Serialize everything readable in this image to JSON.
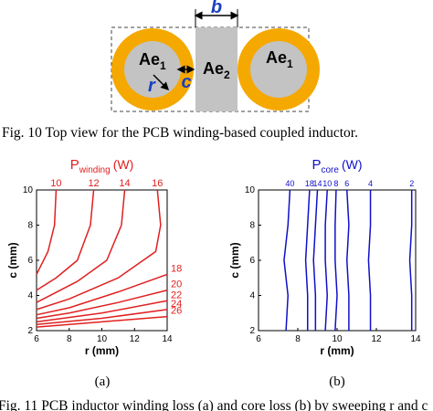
{
  "diagram": {
    "b": "b",
    "left_core": {
      "text": "Ae",
      "sub": "1"
    },
    "middle_core": {
      "text": "Ae",
      "sub": "2"
    },
    "right_core": {
      "text": "Ae",
      "sub": "1"
    },
    "r": "r",
    "c": "c"
  },
  "fig10_caption": "Fig. 10 Top view for the PCB winding-based coupled inductor.",
  "chart_data": [
    {
      "type": "contour",
      "title": "P",
      "title_sub": "winding",
      "title_unit": "(W)",
      "xlabel": "r (mm)",
      "ylabel": "c (mm)",
      "color": "#e02020",
      "xlim": [
        6,
        14
      ],
      "ylim": [
        2,
        10
      ],
      "xticks": [
        6,
        8,
        10,
        12,
        14
      ],
      "yticks": [
        2,
        4,
        6,
        8,
        10
      ],
      "series": [
        {
          "name": "10",
          "x": [
            7.2,
            7.1,
            6.7,
            6
          ],
          "y": [
            10,
            8,
            6.5,
            5.2
          ]
        },
        {
          "name": "12",
          "x": [
            9.5,
            9.3,
            8.5,
            7.2,
            6
          ],
          "y": [
            10,
            8,
            6,
            5,
            4.3
          ]
        },
        {
          "name": "14",
          "x": [
            11.4,
            11.2,
            10.3,
            8.5,
            6
          ],
          "y": [
            10,
            8,
            6,
            4.8,
            3.6
          ]
        },
        {
          "name": "16",
          "x": [
            13.4,
            13.6,
            13.3,
            11,
            8,
            6
          ],
          "y": [
            10,
            8,
            6.5,
            5,
            3.8,
            3.2
          ]
        },
        {
          "name": "18",
          "x": [
            14,
            11,
            8,
            6
          ],
          "y": [
            5.2,
            4.2,
            3.3,
            2.9
          ]
        },
        {
          "name": "20",
          "x": [
            14,
            11,
            8,
            6
          ],
          "y": [
            4.3,
            3.6,
            3.0,
            2.7
          ]
        },
        {
          "name": "22",
          "x": [
            14,
            10,
            6
          ],
          "y": [
            3.7,
            3.0,
            2.5
          ]
        },
        {
          "name": "24",
          "x": [
            14,
            10,
            6
          ],
          "y": [
            3.2,
            2.7,
            2.35
          ]
        },
        {
          "name": "26",
          "x": [
            14,
            10,
            6
          ],
          "y": [
            2.8,
            2.5,
            2.2
          ]
        }
      ]
    },
    {
      "type": "contour",
      "title": "P",
      "title_sub": "core",
      "title_unit": "(W)",
      "xlabel": "r (mm)",
      "ylabel": "c (mm)",
      "color": "#1010c8",
      "xlim": [
        6,
        14
      ],
      "ylim": [
        2,
        10
      ],
      "xticks": [
        6,
        8,
        10,
        12,
        14
      ],
      "yticks": [
        2,
        4,
        6,
        8,
        10
      ],
      "series": [
        {
          "name": "40",
          "x": [
            7.6,
            7.5,
            7.3,
            7.5,
            7.4
          ],
          "y": [
            10,
            8,
            6,
            4,
            2
          ]
        },
        {
          "name": "18",
          "x": [
            8.6,
            8.5,
            8.4,
            8.5,
            8.5
          ],
          "y": [
            10,
            8,
            6,
            4,
            2
          ]
        },
        {
          "name": "14",
          "x": [
            9.0,
            8.9,
            8.8,
            8.9,
            8.9
          ],
          "y": [
            10,
            8,
            6,
            4,
            2
          ]
        },
        {
          "name": "10",
          "x": [
            9.5,
            9.4,
            9.4,
            9.5,
            9.4
          ],
          "y": [
            10,
            8,
            6,
            4,
            2
          ]
        },
        {
          "name": "8",
          "x": [
            9.95,
            9.9,
            9.9,
            10.0,
            9.9
          ],
          "y": [
            10,
            8,
            6,
            4,
            2
          ]
        },
        {
          "name": "6",
          "x": [
            10.5,
            10.6,
            10.5,
            10.6,
            10.6
          ],
          "y": [
            10,
            8,
            6,
            4,
            2
          ]
        },
        {
          "name": "4",
          "x": [
            11.7,
            11.7,
            11.6,
            11.7,
            11.7
          ],
          "y": [
            10,
            8,
            6,
            4,
            2
          ]
        },
        {
          "name": "2",
          "x": [
            13.8,
            13.8,
            13.7,
            13.8,
            13.8
          ],
          "y": [
            10,
            8,
            6,
            4,
            2
          ]
        }
      ]
    }
  ],
  "panel_labels": [
    "(a)",
    "(b)"
  ],
  "fig11_caption": "Fig. 11 PCB inductor winding loss (a) and core loss (b) by sweeping r and c"
}
